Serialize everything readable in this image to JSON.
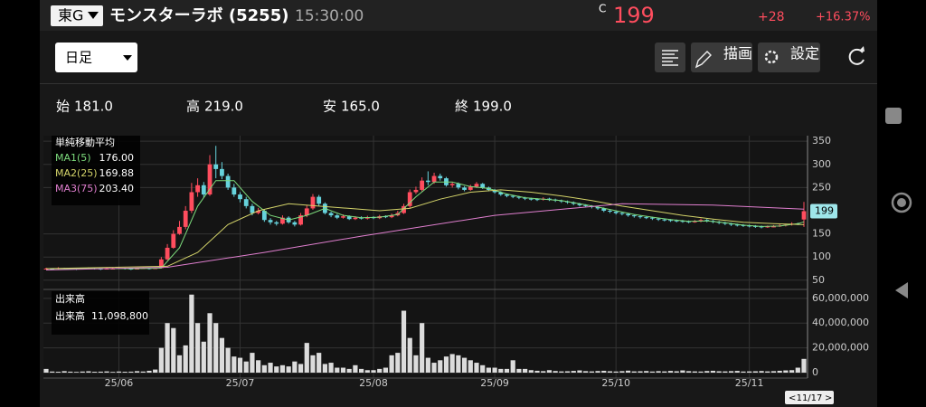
{
  "header": {
    "market": "東G",
    "name": "モンスターラボ (5255)",
    "time": "15:30:00",
    "close_marker": "C",
    "price": 199,
    "change": "+28",
    "change_pct": "+16.37%"
  },
  "toolbar": {
    "period": "日足",
    "draw": "描画",
    "settings": "設定"
  },
  "chart_data": {
    "type": "candlestick",
    "summary": [
      {
        "name": "始",
        "value": 181,
        "label": "181.0"
      },
      {
        "name": "高",
        "value": 219,
        "label": "219.0"
      },
      {
        "name": "安",
        "value": 165,
        "label": "165.0"
      },
      {
        "name": "終",
        "value": 199,
        "label": "199.0"
      }
    ],
    "ma_title": "単純移動平均",
    "up_color": "#ff4d5e",
    "down_color": "#66d3dc",
    "candles": [
      [
        75,
        77,
        73,
        75
      ],
      [
        75,
        76,
        72,
        74
      ],
      [
        74,
        78,
        73,
        76
      ],
      [
        76,
        77,
        74,
        75
      ],
      [
        75,
        77,
        73,
        75
      ],
      [
        75,
        76,
        72,
        74
      ],
      [
        74,
        77,
        73,
        75
      ],
      [
        75,
        78,
        74,
        76
      ],
      [
        76,
        77,
        73,
        75
      ],
      [
        75,
        76,
        72,
        74
      ],
      [
        74,
        77,
        73,
        75
      ],
      [
        75,
        77,
        73,
        75
      ],
      [
        75,
        78,
        74,
        76
      ],
      [
        76,
        77,
        73,
        75
      ],
      [
        75,
        76,
        72,
        74
      ],
      [
        74,
        77,
        73,
        75
      ],
      [
        75,
        78,
        74,
        76
      ],
      [
        76,
        77,
        73,
        75
      ],
      [
        75,
        78,
        74,
        76
      ],
      [
        76,
        100,
        76,
        95
      ],
      [
        95,
        128,
        93,
        120
      ],
      [
        120,
        158,
        118,
        150
      ],
      [
        150,
        178,
        148,
        165
      ],
      [
        165,
        210,
        160,
        200
      ],
      [
        200,
        260,
        195,
        240
      ],
      [
        240,
        270,
        230,
        255
      ],
      [
        255,
        262,
        228,
        235
      ],
      [
        235,
        320,
        232,
        300
      ],
      [
        300,
        340,
        270,
        290
      ],
      [
        290,
        305,
        268,
        275
      ],
      [
        275,
        280,
        245,
        250
      ],
      [
        250,
        258,
        230,
        235
      ],
      [
        235,
        240,
        218,
        225
      ],
      [
        225,
        230,
        205,
        210
      ],
      [
        210,
        215,
        190,
        195
      ],
      [
        195,
        206,
        192,
        200
      ],
      [
        200,
        203,
        176,
        180
      ],
      [
        180,
        184,
        170,
        175
      ],
      [
        175,
        178,
        168,
        172
      ],
      [
        172,
        190,
        170,
        185
      ],
      [
        185,
        188,
        172,
        175
      ],
      [
        175,
        178,
        166,
        170
      ],
      [
        170,
        195,
        168,
        190
      ],
      [
        190,
        212,
        186,
        205
      ],
      [
        205,
        236,
        202,
        230
      ],
      [
        230,
        234,
        210,
        215
      ],
      [
        215,
        218,
        192,
        195
      ],
      [
        195,
        198,
        186,
        190
      ],
      [
        190,
        193,
        182,
        185
      ],
      [
        185,
        192,
        183,
        188
      ],
      [
        188,
        190,
        180,
        182
      ],
      [
        182,
        188,
        180,
        185
      ],
      [
        185,
        188,
        181,
        183
      ],
      [
        183,
        189,
        181,
        186
      ],
      [
        186,
        188,
        182,
        184
      ],
      [
        184,
        191,
        182,
        188
      ],
      [
        188,
        190,
        184,
        186
      ],
      [
        186,
        194,
        184,
        190
      ],
      [
        190,
        200,
        188,
        195
      ],
      [
        195,
        215,
        193,
        210
      ],
      [
        210,
        246,
        206,
        240
      ],
      [
        240,
        252,
        236,
        245
      ],
      [
        245,
        272,
        242,
        265
      ],
      [
        265,
        285,
        255,
        262
      ],
      [
        262,
        282,
        258,
        275
      ],
      [
        275,
        280,
        265,
        270
      ],
      [
        270,
        273,
        252,
        255
      ],
      [
        255,
        262,
        250,
        258
      ],
      [
        258,
        261,
        246,
        250
      ],
      [
        250,
        253,
        242,
        245
      ],
      [
        245,
        256,
        243,
        252
      ],
      [
        252,
        262,
        249,
        258
      ],
      [
        258,
        260,
        247,
        250
      ],
      [
        250,
        252,
        242,
        245
      ],
      [
        245,
        247,
        237,
        240
      ],
      [
        240,
        242,
        232,
        235
      ],
      [
        235,
        237,
        229,
        232
      ],
      [
        232,
        234,
        227,
        230
      ],
      [
        230,
        232,
        225,
        228
      ],
      [
        228,
        230,
        223,
        226
      ],
      [
        226,
        228,
        222,
        225
      ],
      [
        225,
        227,
        221,
        224
      ],
      [
        224,
        229,
        222,
        226
      ],
      [
        226,
        228,
        221,
        224
      ],
      [
        224,
        226,
        219,
        222
      ],
      [
        222,
        224,
        217,
        220
      ],
      [
        220,
        222,
        215,
        218
      ],
      [
        218,
        220,
        212,
        215
      ],
      [
        215,
        217,
        209,
        212
      ],
      [
        212,
        214,
        207,
        210
      ],
      [
        210,
        212,
        205,
        208
      ],
      [
        208,
        210,
        202,
        205
      ],
      [
        205,
        207,
        197,
        200
      ],
      [
        200,
        202,
        195,
        198
      ],
      [
        198,
        200,
        192,
        195
      ],
      [
        195,
        197,
        190,
        193
      ],
      [
        193,
        195,
        187,
        190
      ],
      [
        190,
        192,
        185,
        188
      ],
      [
        188,
        190,
        183,
        186
      ],
      [
        186,
        188,
        182,
        185
      ],
      [
        185,
        187,
        180,
        183
      ],
      [
        183,
        185,
        178,
        181
      ],
      [
        181,
        183,
        177,
        180
      ],
      [
        180,
        182,
        176,
        179
      ],
      [
        179,
        181,
        175,
        178
      ],
      [
        178,
        180,
        174,
        177
      ],
      [
        177,
        179,
        173,
        176
      ],
      [
        176,
        180,
        174,
        177
      ],
      [
        177,
        183,
        175,
        180
      ],
      [
        180,
        182,
        175,
        178
      ],
      [
        178,
        180,
        173,
        176
      ],
      [
        176,
        178,
        171,
        174
      ],
      [
        174,
        176,
        169,
        172
      ],
      [
        172,
        174,
        167,
        170
      ],
      [
        170,
        172,
        166,
        169
      ],
      [
        169,
        171,
        165,
        168
      ],
      [
        168,
        170,
        164,
        167
      ],
      [
        167,
        169,
        163,
        166
      ],
      [
        166,
        168,
        162,
        165
      ],
      [
        165,
        168,
        163,
        166
      ],
      [
        166,
        169,
        164,
        166
      ],
      [
        166,
        171,
        165,
        168
      ],
      [
        168,
        172,
        166,
        170
      ],
      [
        170,
        175,
        168,
        172
      ],
      [
        172,
        174,
        169,
        171
      ],
      [
        181,
        219,
        165,
        199
      ]
    ],
    "ylim": [
      34,
      362
    ],
    "yticks": [
      50,
      100,
      150,
      250,
      300,
      350
    ],
    "xlim": [
      0,
      125
    ],
    "xticks": [
      {
        "value": 12,
        "label": "25/06"
      },
      {
        "value": 32,
        "label": "25/07"
      },
      {
        "value": 54,
        "label": "25/08"
      },
      {
        "value": 74,
        "label": "25/09"
      },
      {
        "value": 94,
        "label": "25/10"
      },
      {
        "value": 116,
        "label": "25/11"
      }
    ],
    "grid": true,
    "series": [
      {
        "name": "MA1(5)",
        "color": "#7ddc7d",
        "last": {
          "value": 176,
          "label": "176.00"
        },
        "x": [
          0,
          5,
          10,
          15,
          19,
          22,
          25,
          28,
          31,
          34,
          37,
          40,
          43,
          46,
          49,
          52,
          55,
          58,
          61,
          64,
          67,
          70,
          73,
          76,
          79,
          82,
          85,
          88,
          91,
          94,
          97,
          100,
          103,
          106,
          109,
          112,
          115,
          118,
          121,
          124,
          125
        ],
        "values": [
          75,
          75,
          75,
          75,
          76,
          120,
          210,
          265,
          265,
          220,
          190,
          180,
          190,
          205,
          190,
          185,
          186,
          192,
          230,
          262,
          262,
          252,
          248,
          236,
          228,
          225,
          222,
          215,
          208,
          200,
          192,
          186,
          181,
          177,
          178,
          174,
          169,
          166,
          167,
          172,
          176
        ]
      },
      {
        "name": "MA2(25)",
        "color": "#d4d46a",
        "last": {
          "value": 169.88,
          "label": "169.88"
        },
        "x": [
          0,
          20,
          25,
          30,
          35,
          40,
          45,
          50,
          55,
          60,
          65,
          70,
          75,
          80,
          85,
          90,
          95,
          100,
          105,
          110,
          115,
          120,
          125
        ],
        "values": [
          75,
          80,
          110,
          170,
          200,
          215,
          210,
          205,
          200,
          205,
          225,
          240,
          245,
          240,
          232,
          222,
          210,
          200,
          190,
          182,
          175,
          172,
          169.88
        ]
      },
      {
        "name": "MA3(75)",
        "color": "#e07fcf",
        "last": {
          "value": 203.4,
          "label": "203.40"
        },
        "x": [
          0,
          20,
          36,
          52,
          74,
          95,
          110,
          125
        ],
        "values": [
          72,
          78,
          110,
          145,
          190,
          215,
          212,
          203.4
        ]
      }
    ],
    "volume": {
      "title": "出来高",
      "name": "出来高",
      "last": {
        "value": 11098800,
        "label": "11,098,800"
      },
      "color": "#dcdcdc",
      "values": [
        3000000,
        900000,
        700000,
        1200000,
        800000,
        600000,
        900000,
        1100000,
        700000,
        800000,
        1000000,
        600000,
        900000,
        700000,
        800000,
        1200000,
        900000,
        1500000,
        2500000,
        20000000,
        40000000,
        36000000,
        14000000,
        22000000,
        63000000,
        40000000,
        25000000,
        48000000,
        40000000,
        28000000,
        20000000,
        13000000,
        12000000,
        9000000,
        16000000,
        10000000,
        6000000,
        8000000,
        5000000,
        6000000,
        5000000,
        9000000,
        7000000,
        24000000,
        14000000,
        16000000,
        7000000,
        8000000,
        4000000,
        4000000,
        3000000,
        6000000,
        3000000,
        2000000,
        2000000,
        3000000,
        4000000,
        14000000,
        16000000,
        50000000,
        28000000,
        14000000,
        40000000,
        12000000,
        8000000,
        10000000,
        13000000,
        15000000,
        14000000,
        12000000,
        10000000,
        8000000,
        6000000,
        4000000,
        4000000,
        3000000,
        3000000,
        10000000,
        3000000,
        3000000,
        2000000,
        1500000,
        1200000,
        2000000,
        1300000,
        1000000,
        1100000,
        1400000,
        1800000,
        1200000,
        1000000,
        1300000,
        1500000,
        1100000,
        900000,
        1200000,
        1600000,
        1000000,
        1100000,
        1300000,
        900000,
        1200000,
        1000000,
        1400000,
        1100000,
        1800000,
        1200000,
        1000000,
        900000,
        1300000,
        1500000,
        1100000,
        1000000,
        1200000,
        1400000,
        900000,
        1000000,
        1100000,
        1300000,
        1000000,
        1200000,
        1500000,
        1800000,
        2000000,
        4000000,
        11098800
      ],
      "ylim": [
        0,
        65000000
      ],
      "yticks": [
        0,
        {
          "value": 20000000,
          "label": "20,000,000"
        },
        {
          "value": 40000000,
          "label": "40,000,000"
        },
        {
          "value": 60000000,
          "label": "60,000,000"
        }
      ]
    },
    "cursor_date": "11/17"
  }
}
